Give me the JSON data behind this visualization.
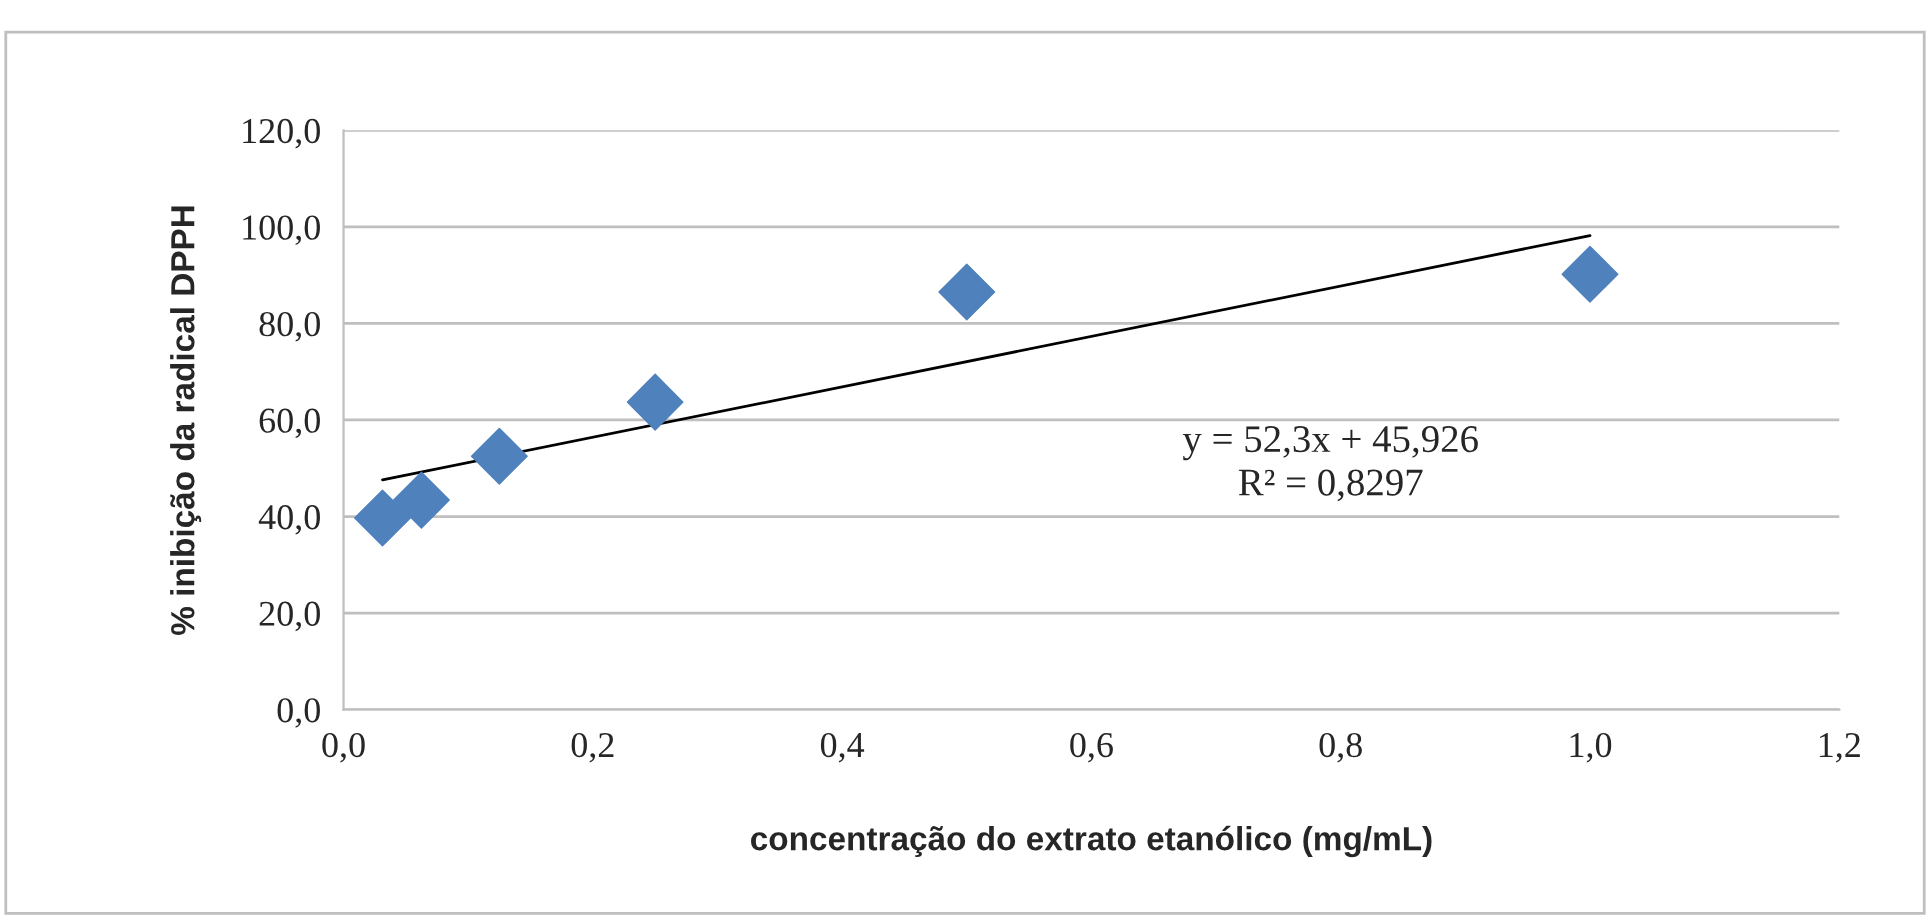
{
  "chart_data": {
    "type": "scatter",
    "xlabel": "concentração do extrato etanólico (mg/mL)",
    "ylabel": "% inibição da radical DPPH",
    "series": [
      {
        "color": "#4f81bd",
        "marker": "diamond",
        "x": [
          0.03125,
          0.0625,
          0.125,
          0.25,
          0.5,
          1.0
        ],
        "values": [
          39.7,
          43.4,
          52.5,
          63.7,
          86.5,
          90.2
        ]
      },
      {
        "type": "line",
        "color": "#000000",
        "marker": "none",
        "line_style": "solid",
        "x": [
          0.03125,
          1.0
        ],
        "values": [
          47.6,
          98.2
        ]
      }
    ],
    "annotations": [
      "y = 52,3x + 45,926",
      "R² = 0,8297"
    ],
    "xlim": [
      0,
      1.2
    ],
    "ylim": [
      0,
      120
    ],
    "xticks": [
      {
        "value": 0,
        "label": "0,0"
      },
      {
        "value": 0.2,
        "label": "0,2"
      },
      {
        "value": 0.4,
        "label": "0,4"
      },
      {
        "value": 0.6,
        "label": "0,6"
      },
      {
        "value": 0.8,
        "label": "0,8"
      },
      {
        "value": 1.0,
        "label": "1,0"
      },
      {
        "value": 1.2,
        "label": "1,2"
      }
    ],
    "yticks": [
      {
        "value": 0,
        "label": "0,0"
      },
      {
        "value": 20,
        "label": "20,0"
      },
      {
        "value": 40,
        "label": "40,0"
      },
      {
        "value": 60,
        "label": "60,0"
      },
      {
        "value": 80,
        "label": "80,0"
      },
      {
        "value": 100,
        "label": "100,0"
      },
      {
        "value": 120,
        "label": "120,0"
      }
    ],
    "grid": "y",
    "legend": false
  }
}
